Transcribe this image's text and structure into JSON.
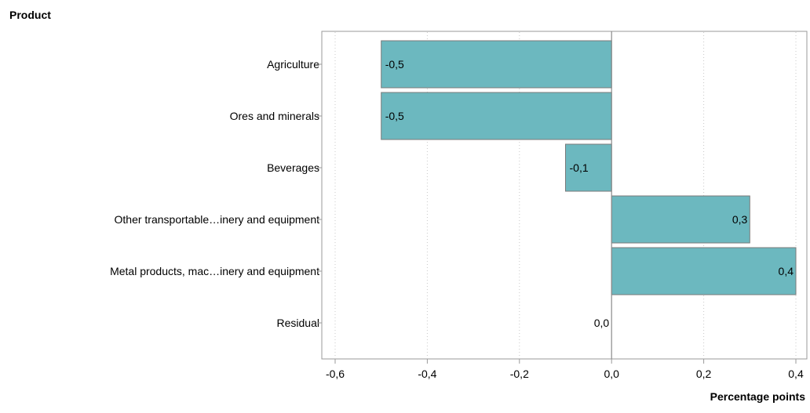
{
  "chart_data": {
    "type": "bar",
    "orientation": "horizontal",
    "ylabel": "Product",
    "xlabel": "Percentage points",
    "categories": [
      "Agriculture",
      "Ores and minerals",
      "Beverages",
      "Other transportable…inery and equipment",
      "Metal products, mac…inery and equipment",
      "Residual"
    ],
    "values": [
      -0.5,
      -0.5,
      -0.1,
      0.3,
      0.4,
      0.0
    ],
    "data_labels": [
      "-0,5",
      "-0,5",
      "-0,1",
      "0,3",
      "0,4",
      "0,0"
    ],
    "xlim": [
      -0.6,
      0.4
    ],
    "xticks": [
      -0.6,
      -0.4,
      -0.2,
      0.0,
      0.2,
      0.4
    ],
    "xtick_labels": [
      "-0,6",
      "-0,4",
      "-0,2",
      "0,0",
      "0,2",
      "0,4"
    ],
    "grid": "vertical dotted",
    "bar_color": "#6cb8bf",
    "bar_edge_color": "#7a7a7a"
  }
}
